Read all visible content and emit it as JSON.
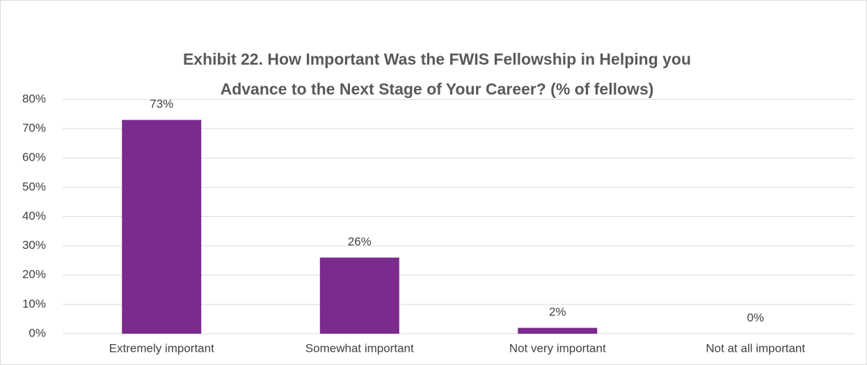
{
  "chart_data": {
    "type": "bar",
    "title": [
      "Exhibit 22. How Important Was the FWIS Fellowship in Helping you",
      "Advance to the Next Stage of Your Career? (% of fellows)"
    ],
    "categories": [
      "Extremely important",
      "Somewhat important",
      "Not very important",
      "Not at all important"
    ],
    "values": [
      73,
      26,
      2,
      0
    ],
    "value_labels": [
      "73%",
      "26%",
      "2%",
      "0%"
    ],
    "color": "#7b2a8e",
    "ylim": [
      0,
      80
    ],
    "yticks": [
      {
        "value": 0,
        "label": "0%"
      },
      {
        "value": 10,
        "label": "10%"
      },
      {
        "value": 20,
        "label": "20%"
      },
      {
        "value": 30,
        "label": "30%"
      },
      {
        "value": 40,
        "label": "40%"
      },
      {
        "value": 50,
        "label": "50%"
      },
      {
        "value": 60,
        "label": "60%"
      },
      {
        "value": 70,
        "label": "70%"
      },
      {
        "value": 80,
        "label": "80%"
      }
    ],
    "grid": true
  }
}
